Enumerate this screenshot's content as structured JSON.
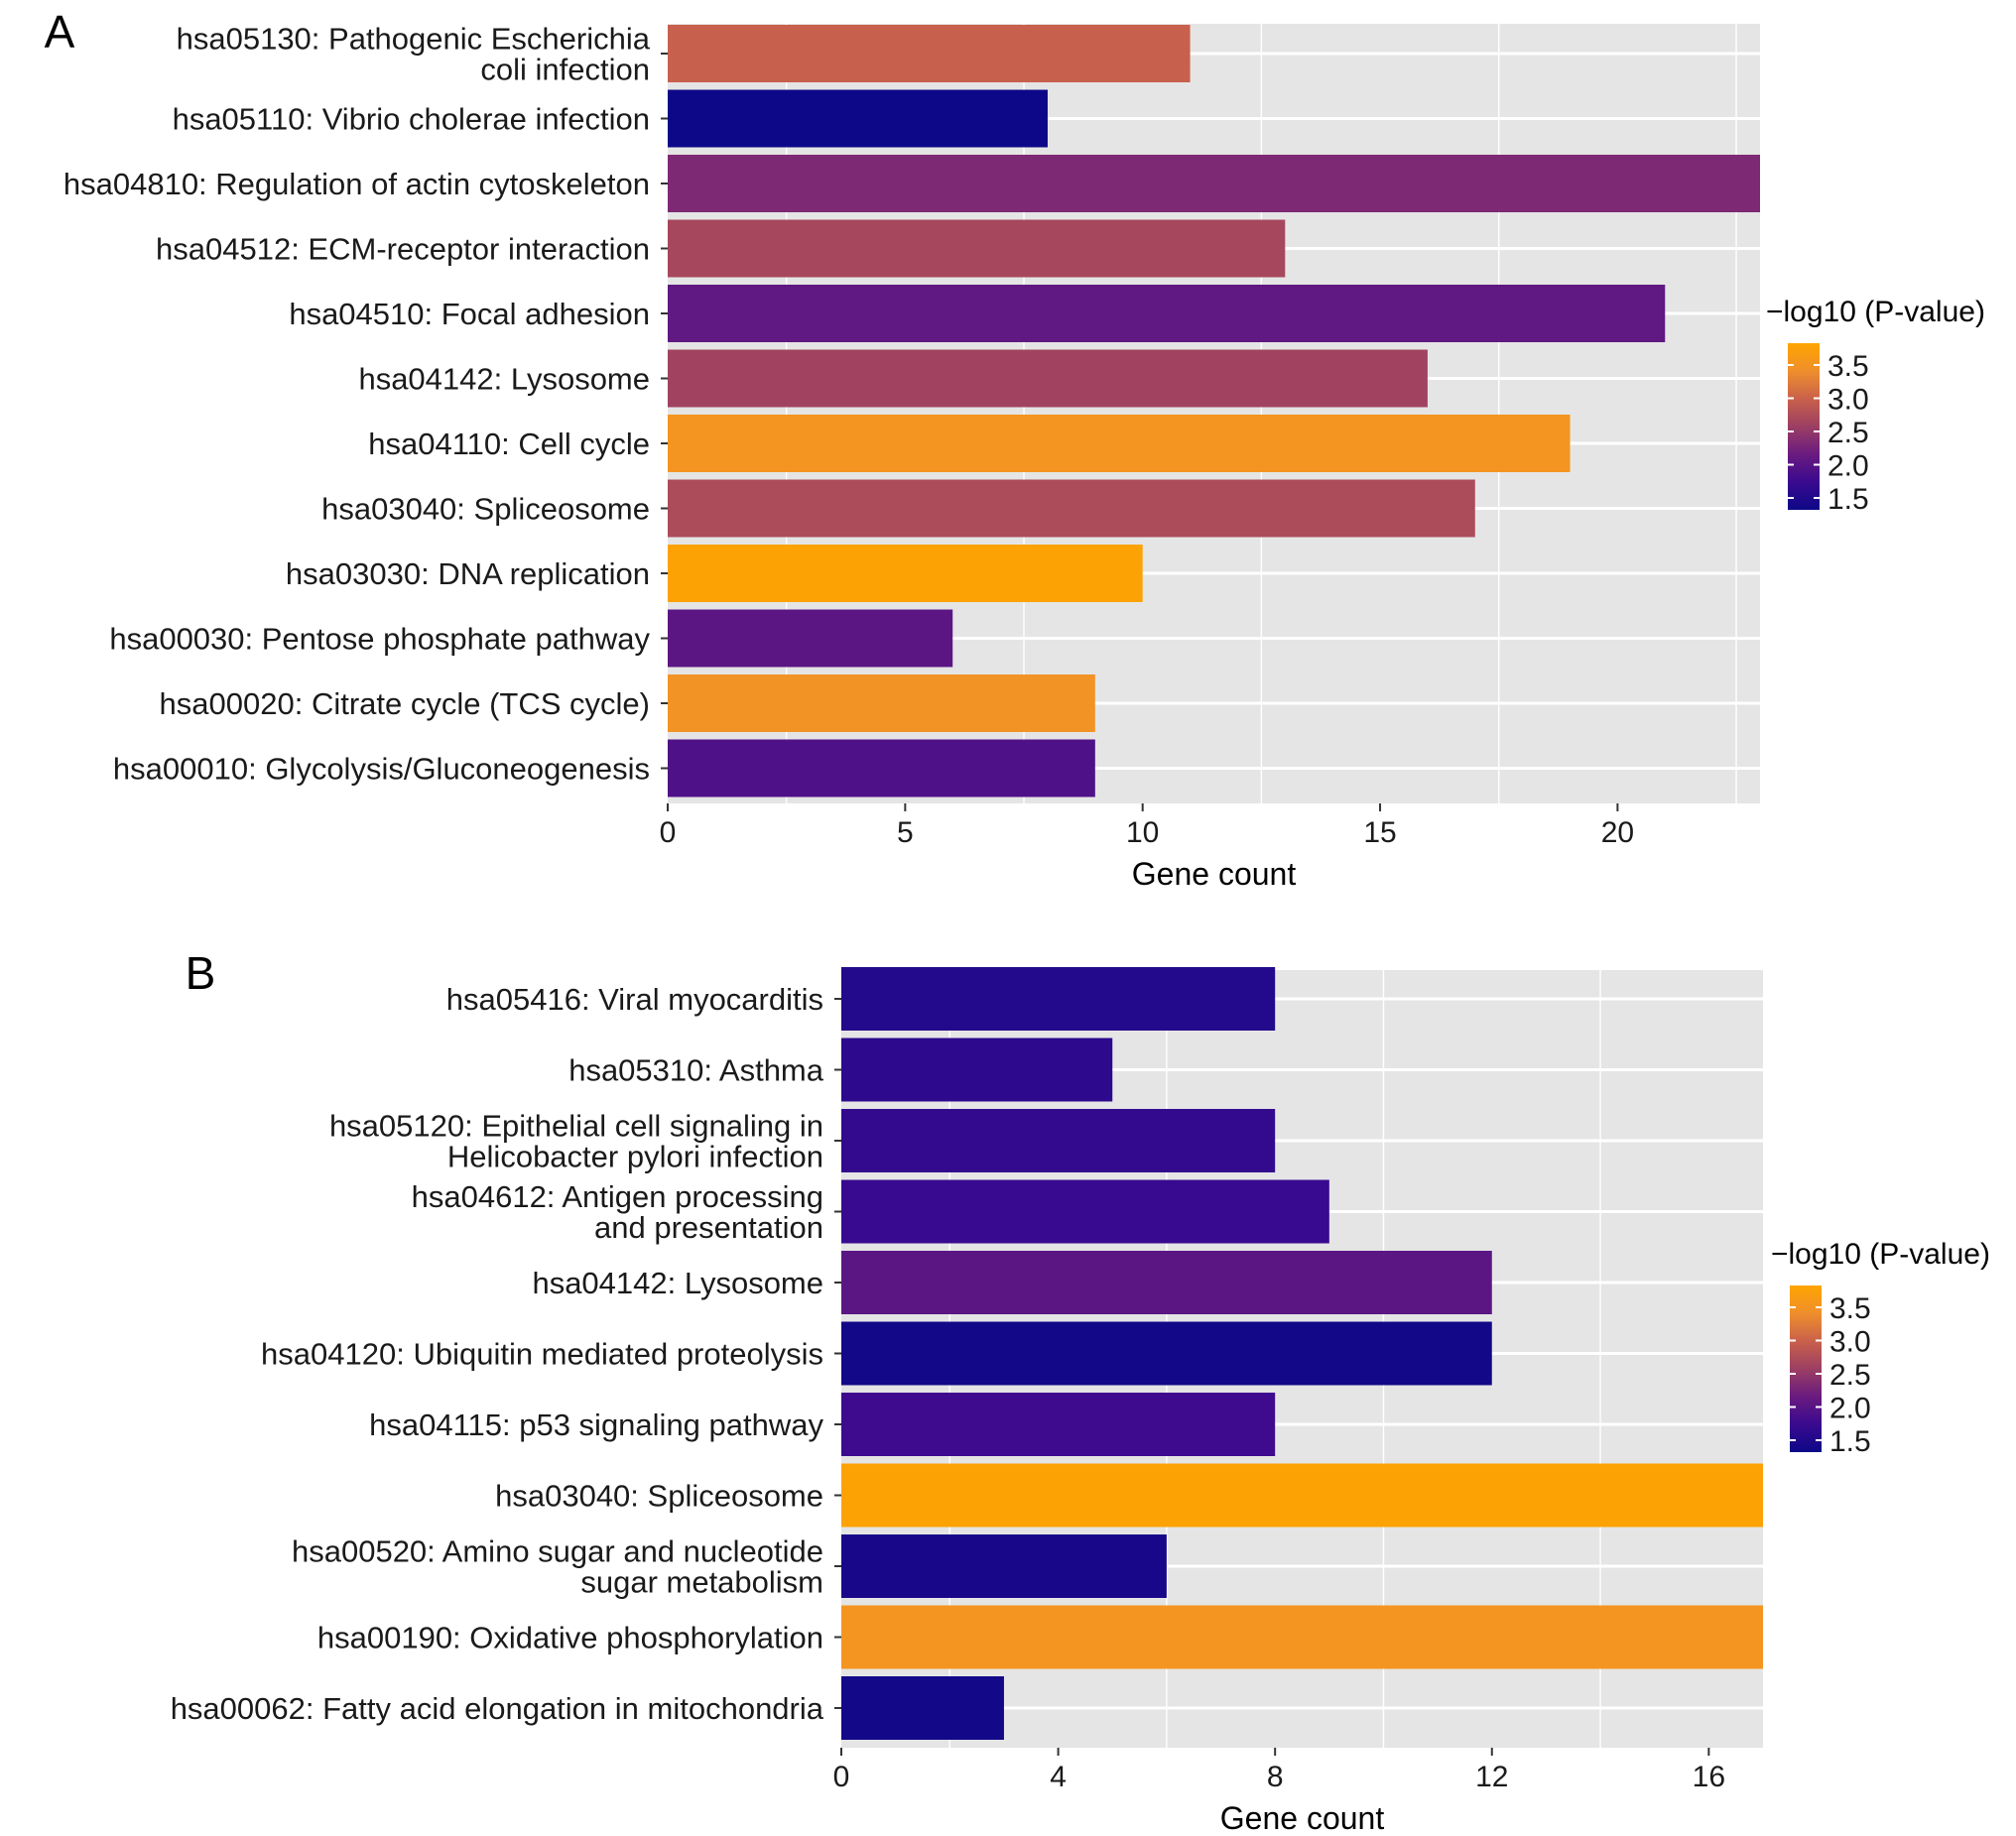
{
  "colors": {
    "panel_bg": "#e5e5e5",
    "grid": "#ffffff",
    "tick": "#333333",
    "gradient": [
      "#0d0887",
      "#3a0a8f",
      "#6a1b7f",
      "#9c3f63",
      "#c9614b",
      "#ef8f2c",
      "#ffa500"
    ]
  },
  "chart_data": [
    {
      "panel_label": "A",
      "type": "bar",
      "orientation": "horizontal",
      "xlabel": "Gene count",
      "ylabel": "",
      "xlim": [
        0,
        23
      ],
      "xticks": [
        0,
        5,
        10,
        15,
        20
      ],
      "grid": true,
      "legend": {
        "title": "−log10 (P-value)",
        "ticks": [
          "3.5",
          "3.0",
          "2.5",
          "2.0",
          "1.5"
        ],
        "placement": "right"
      },
      "categories": [
        [
          "hsa05130: Pathogenic Escherichia",
          "coli infection"
        ],
        [
          "hsa05110: Vibrio cholerae infection"
        ],
        [
          "hsa04810: Regulation of actin cytoskeleton"
        ],
        [
          "hsa04512: ECM-receptor interaction"
        ],
        [
          "hsa04510: Focal adhesion"
        ],
        [
          "hsa04142: Lysosome"
        ],
        [
          "hsa04110: Cell cycle"
        ],
        [
          "hsa03040: Spliceosome"
        ],
        [
          "hsa03030: DNA replication"
        ],
        [
          "hsa00030: Pentose phosphate pathway"
        ],
        [
          "hsa00020: Citrate cycle (TCS cycle)"
        ],
        [
          "hsa00010: Glycolysis/Gluconeogenesis"
        ]
      ],
      "values": [
        11,
        8,
        23,
        13,
        21,
        16,
        19,
        17,
        10,
        6,
        9,
        9
      ],
      "neglog10_p": [
        2.95,
        1.3,
        2.3,
        2.65,
        2.05,
        2.6,
        3.5,
        2.7,
        3.75,
        2.0,
        3.45,
        1.9
      ]
    },
    {
      "panel_label": "B",
      "type": "bar",
      "orientation": "horizontal",
      "xlabel": "Gene count",
      "ylabel": "",
      "xlim": [
        0,
        17
      ],
      "xticks": [
        0,
        4,
        8,
        12,
        16
      ],
      "grid": true,
      "legend": {
        "title": "−log10 (P-value)",
        "ticks": [
          "3.5",
          "3.0",
          "2.5",
          "2.0",
          "1.5"
        ],
        "placement": "right"
      },
      "categories": [
        [
          "hsa05416: Viral myocarditis"
        ],
        [
          "hsa05310: Asthma"
        ],
        [
          "hsa05120: Epithelial cell signaling in",
          "Helicobacter pylori infection"
        ],
        [
          "hsa04612: Antigen processing",
          "and presentation"
        ],
        [
          "hsa04142: Lysosome"
        ],
        [
          "hsa04120: Ubiquitin mediated proteolysis"
        ],
        [
          "hsa04115: p53 signaling pathway"
        ],
        [
          "hsa03040: Spliceosome"
        ],
        [
          "hsa00520: Amino sugar and nucleotide",
          "sugar metabolism"
        ],
        [
          "hsa00190: Oxidative phosphorylation"
        ],
        [
          "hsa00062: Fatty acid elongation in mitochondria"
        ]
      ],
      "values": [
        8,
        5,
        8,
        9,
        12,
        12,
        8,
        17,
        6,
        17,
        3
      ],
      "neglog10_p": [
        1.5,
        1.6,
        1.65,
        1.7,
        2.0,
        1.35,
        1.75,
        3.75,
        1.4,
        3.5,
        1.35
      ]
    }
  ]
}
